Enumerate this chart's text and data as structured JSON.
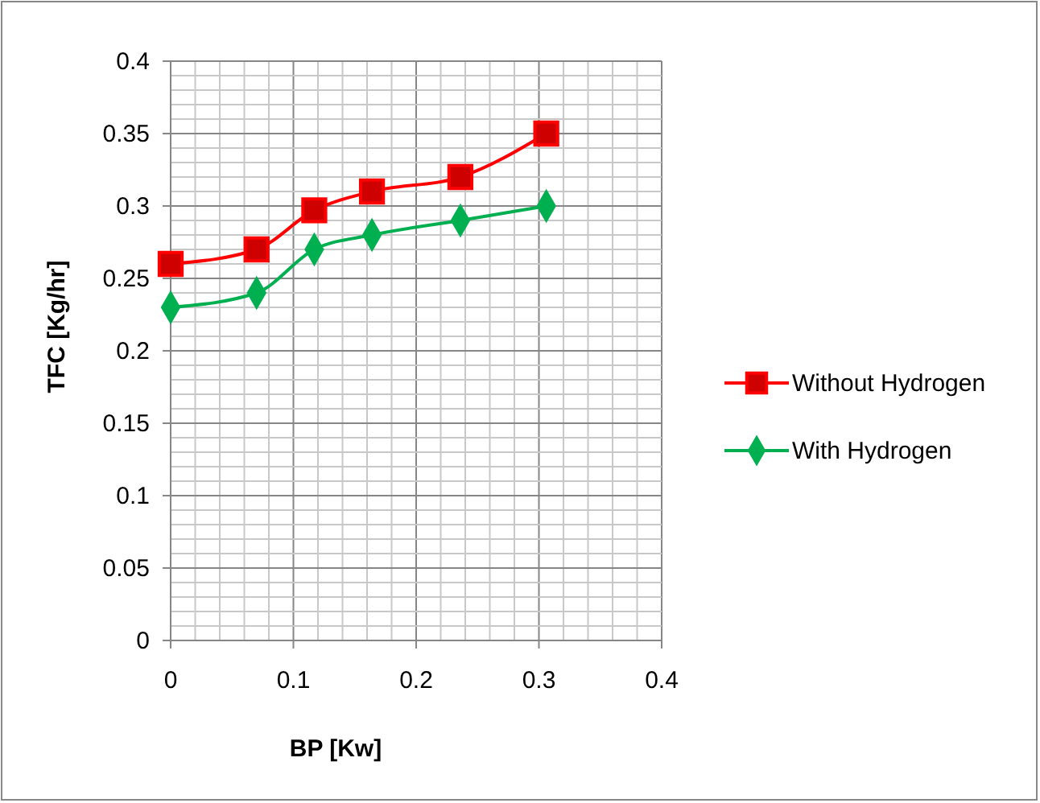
{
  "chart_data": {
    "type": "line",
    "xlabel": "BP [Kw]",
    "ylabel": "TFC [Kg/hr]",
    "xlim": [
      0,
      0.4
    ],
    "xticks": [
      0,
      0.1,
      0.2,
      0.3,
      0.4
    ],
    "ylim": [
      0,
      0.4
    ],
    "yticks": [
      0,
      0.05,
      0.1,
      0.15,
      0.2,
      0.25,
      0.3,
      0.35,
      0.4
    ],
    "grid": true,
    "legend": "right",
    "line_style": "solid",
    "x": [
      0,
      0.07,
      0.117,
      0.164,
      0.236,
      0.306
    ],
    "series": [
      {
        "name": "Without Hydrogen",
        "color": "#ff0000",
        "marker": "square",
        "values": [
          0.26,
          0.27,
          0.297,
          0.31,
          0.32,
          0.35
        ]
      },
      {
        "name": "With Hydrogen",
        "color": "#00b050",
        "marker": "diamond",
        "values": [
          0.23,
          0.24,
          0.27,
          0.28,
          0.29,
          0.3
        ]
      }
    ]
  }
}
